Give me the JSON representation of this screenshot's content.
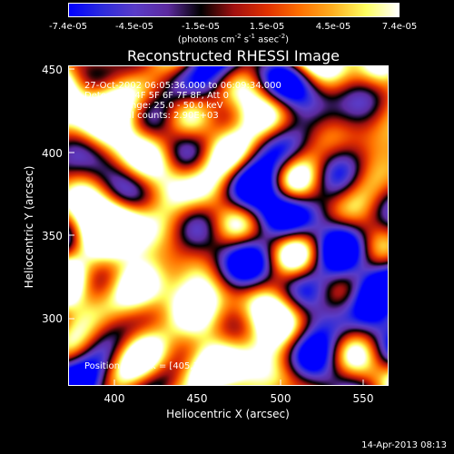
{
  "colorbar": {
    "tick_labels": [
      "-7.4e-05",
      "-4.5e-05",
      "-1.5e-05",
      "1.5e-05",
      "4.5e-05",
      "7.4e-05"
    ],
    "units_main": "(photons cm",
    "units_exp1": "-2",
    "units_mid": " s",
    "units_exp2": "-1",
    "units_end": " asec",
    "units_exp3": "-2",
    "units_close": ")",
    "range": [
      -7.4e-05,
      7.4e-05
    ]
  },
  "info": {
    "time": "27-Oct-2002 06:05:36.000 to 06:09:34.000",
    "detectors": "Detectors: 4F 5F 6F 7F 8F, Att 0",
    "energy": "Energy Range: 25.0 - 50.0 keV",
    "clean": "Clean     Total counts: 2.90E+03",
    "peak": "Position of Peak = [405,355]"
  },
  "timestamp": "14-Apr-2013 08:13",
  "chart_data": {
    "type": "heatmap",
    "title": "Reconstructed RHESSI Image",
    "xlabel": "Heliocentric X (arcsec)",
    "ylabel": "Heliocentric Y (arcsec)",
    "xlim": [
      372,
      565
    ],
    "ylim": [
      258,
      451
    ],
    "xticks": [
      "400",
      "450",
      "500",
      "550"
    ],
    "yticks": [
      "450",
      "400",
      "350",
      "300"
    ],
    "peak": [
      405,
      355
    ],
    "colormap": [
      "#0000ff",
      "#2d2bdc",
      "#5a3cc8",
      "#5c2a9e",
      "#000000",
      "#a01010",
      "#e03000",
      "#ff7000",
      "#ffb020",
      "#ffff60",
      "#ffffff"
    ]
  }
}
